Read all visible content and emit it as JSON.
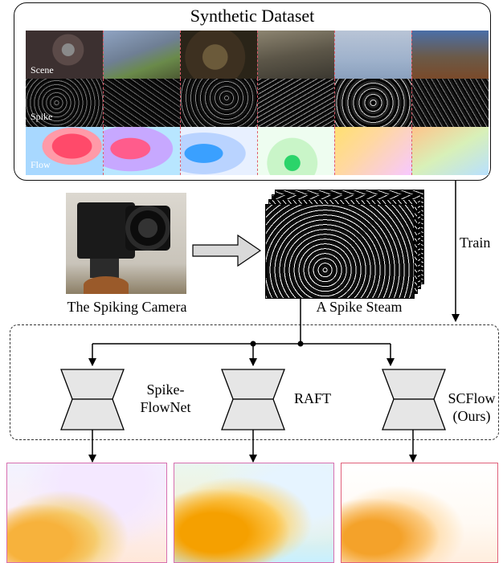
{
  "dataset": {
    "title": "Synthetic Dataset",
    "rows": [
      "Scene",
      "Spike",
      "Flow"
    ]
  },
  "camera": {
    "caption": "The Spiking Camera"
  },
  "spike_stream": {
    "caption": "A Spike Steam"
  },
  "train_label": "Train",
  "networks": [
    {
      "label_line1": "Spike-",
      "label_line2": "FlowNet"
    },
    {
      "label_line1": "RAFT",
      "label_line2": ""
    },
    {
      "label_line1": "SCFlow",
      "label_line2": "(Ours)"
    }
  ],
  "colors": {
    "separator": "#e05a6a",
    "network_fill": "#e6e6e6",
    "output1_border": "#d76fb0",
    "output3_border": "#e0607a"
  }
}
